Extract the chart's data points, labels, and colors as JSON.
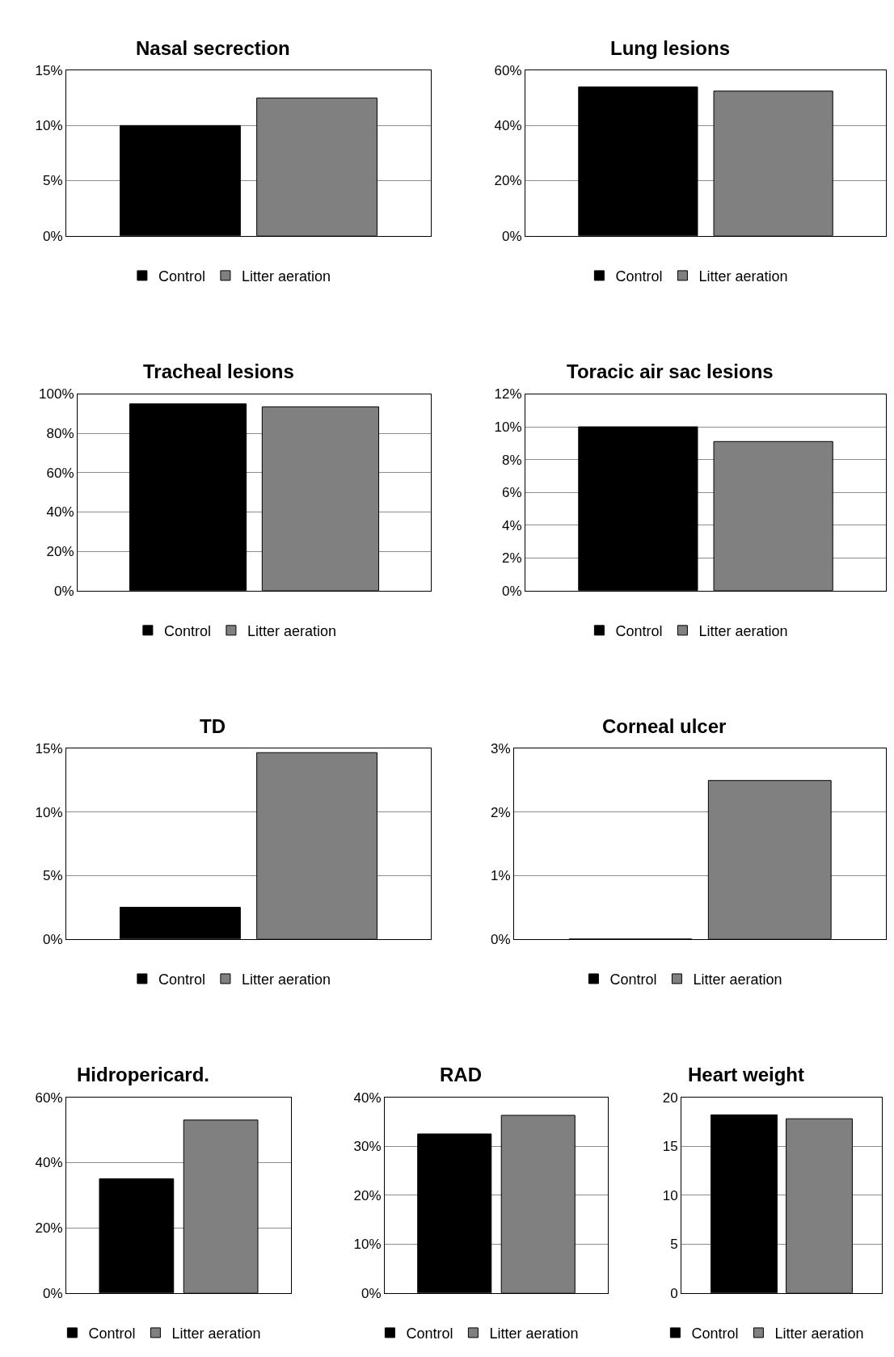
{
  "chart_data": [
    {
      "type": "bar",
      "title": "Nasal secrection",
      "categories": [
        null
      ],
      "legend": "bottom",
      "grid": "y",
      "ylim": [
        0,
        15
      ],
      "yticks": [
        {
          "value": 0,
          "label": "0%"
        },
        {
          "value": 5,
          "label": "5%"
        },
        {
          "value": 10,
          "label": "10%"
        },
        {
          "value": 15,
          "label": "15%"
        }
      ],
      "series": [
        {
          "name": "Control",
          "color": "#000000",
          "values": [
            10
          ]
        },
        {
          "name": "Litter aeration",
          "color": "#808080",
          "values": [
            12.5
          ]
        }
      ]
    },
    {
      "type": "bar",
      "title": "Lung lesions",
      "categories": [
        null
      ],
      "legend": "bottom",
      "grid": "y",
      "ylim": [
        0,
        60
      ],
      "yticks": [
        {
          "value": 0,
          "label": "0%"
        },
        {
          "value": 20,
          "label": "20%"
        },
        {
          "value": 40,
          "label": "40%"
        },
        {
          "value": 60,
          "label": "60%"
        }
      ],
      "series": [
        {
          "name": "Control",
          "color": "#000000",
          "values": [
            54
          ]
        },
        {
          "name": "Litter aeration",
          "color": "#808080",
          "values": [
            52.5
          ]
        }
      ]
    },
    {
      "type": "bar",
      "title": "Tracheal lesions",
      "categories": [
        null
      ],
      "legend": "bottom",
      "grid": "y",
      "ylim": [
        0,
        100
      ],
      "yticks": [
        {
          "value": 0,
          "label": "0%"
        },
        {
          "value": 20,
          "label": "20%"
        },
        {
          "value": 40,
          "label": "40%"
        },
        {
          "value": 60,
          "label": "60%"
        },
        {
          "value": 80,
          "label": "80%"
        },
        {
          "value": 100,
          "label": "100%"
        }
      ],
      "series": [
        {
          "name": "Control",
          "color": "#000000",
          "values": [
            95
          ]
        },
        {
          "name": "Litter aeration",
          "color": "#808080",
          "values": [
            93.5
          ]
        }
      ]
    },
    {
      "type": "bar",
      "title": "Toracic air sac lesions",
      "categories": [
        null
      ],
      "legend": "bottom",
      "grid": "y",
      "ylim": [
        0,
        12
      ],
      "yticks": [
        {
          "value": 0,
          "label": "0%"
        },
        {
          "value": 2,
          "label": "2%"
        },
        {
          "value": 4,
          "label": "4%"
        },
        {
          "value": 6,
          "label": "6%"
        },
        {
          "value": 8,
          "label": "8%"
        },
        {
          "value": 10,
          "label": "10%"
        },
        {
          "value": 12,
          "label": "12%"
        }
      ],
      "series": [
        {
          "name": "Control",
          "color": "#000000",
          "values": [
            10
          ]
        },
        {
          "name": "Litter aeration",
          "color": "#808080",
          "values": [
            9.1
          ]
        }
      ]
    },
    {
      "type": "bar",
      "title": "TD",
      "categories": [
        null
      ],
      "legend": "bottom",
      "grid": "y",
      "ylim": [
        0,
        15
      ],
      "yticks": [
        {
          "value": 0,
          "label": "0%"
        },
        {
          "value": 5,
          "label": "5%"
        },
        {
          "value": 10,
          "label": "10%"
        },
        {
          "value": 15,
          "label": "15%"
        }
      ],
      "series": [
        {
          "name": "Control",
          "color": "#000000",
          "values": [
            2.5
          ]
        },
        {
          "name": "Litter aeration",
          "color": "#808080",
          "values": [
            14.7
          ]
        }
      ]
    },
    {
      "type": "bar",
      "title": "Corneal ulcer",
      "categories": [
        null
      ],
      "legend": "bottom",
      "grid": "y",
      "ylim": [
        0,
        3
      ],
      "yticks": [
        {
          "value": 0,
          "label": "0%"
        },
        {
          "value": 1,
          "label": "1%"
        },
        {
          "value": 2,
          "label": "2%"
        },
        {
          "value": 3,
          "label": "3%"
        }
      ],
      "series": [
        {
          "name": "Control",
          "color": "#000000",
          "values": [
            0
          ]
        },
        {
          "name": "Litter aeration",
          "color": "#808080",
          "values": [
            2.5
          ]
        }
      ]
    },
    {
      "type": "bar",
      "title": "Hidropericard.",
      "categories": [
        null
      ],
      "legend": "bottom",
      "grid": "y",
      "ylim": [
        0,
        60
      ],
      "yticks": [
        {
          "value": 0,
          "label": "0%"
        },
        {
          "value": 20,
          "label": "20%"
        },
        {
          "value": 40,
          "label": "40%"
        },
        {
          "value": 60,
          "label": "60%"
        }
      ],
      "series": [
        {
          "name": "Control",
          "color": "#000000",
          "values": [
            35
          ]
        },
        {
          "name": "Litter aeration",
          "color": "#808080",
          "values": [
            53
          ]
        }
      ]
    },
    {
      "type": "bar",
      "title": "RAD",
      "categories": [
        null
      ],
      "legend": "bottom",
      "grid": "y",
      "ylim": [
        0,
        40
      ],
      "yticks": [
        {
          "value": 0,
          "label": "0%"
        },
        {
          "value": 10,
          "label": "10%"
        },
        {
          "value": 20,
          "label": "20%"
        },
        {
          "value": 30,
          "label": "30%"
        },
        {
          "value": 40,
          "label": "40%"
        }
      ],
      "series": [
        {
          "name": "Control",
          "color": "#000000",
          "values": [
            32.5
          ]
        },
        {
          "name": "Litter aeration",
          "color": "#808080",
          "values": [
            36.3
          ]
        }
      ]
    },
    {
      "type": "bar",
      "title": "Heart weight",
      "categories": [
        null
      ],
      "legend": "bottom",
      "grid": "y",
      "ylim": [
        0,
        20
      ],
      "yticks": [
        0,
        5,
        10,
        15,
        20
      ],
      "series": [
        {
          "name": "Control",
          "color": "#000000",
          "values": [
            18.2
          ]
        },
        {
          "name": "Litter aeration",
          "color": "#808080",
          "values": [
            17.8
          ]
        }
      ]
    }
  ]
}
